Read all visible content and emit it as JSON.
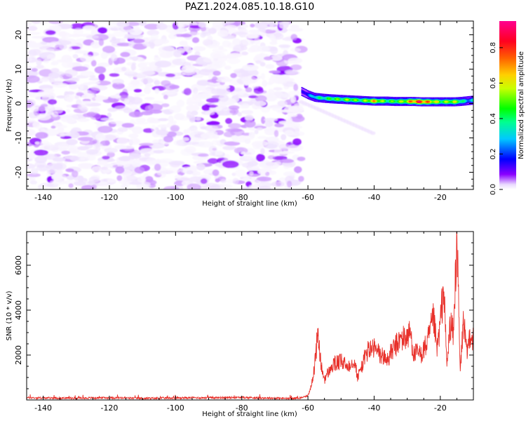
{
  "title": "PAZ1.2024.085.10.18.G10",
  "chart_data": [
    {
      "type": "heatmap",
      "xlabel": "Height of straight line (km)",
      "ylabel": "Frequency (Hz)",
      "xlim": [
        -145,
        -10
      ],
      "ylim": [
        -25,
        24
      ],
      "xticks": [
        -140,
        -120,
        -100,
        -80,
        -60,
        -40,
        -20
      ],
      "yticks": [
        -20,
        -10,
        0,
        10,
        20
      ],
      "colorbar": {
        "label": "Normalized spectral amplitude",
        "range": [
          0,
          0.95
        ],
        "ticks": [
          "0.0",
          "0.2",
          "0.4",
          "0.6",
          "0.8"
        ],
        "colormap": "gist_rainbow (white at 0)"
      },
      "description_regions": [
        {
          "x_range": [
            -145,
            -62
          ],
          "frequency_range": [
            -25,
            24
          ],
          "amplitude": [
            0.0,
            0.08
          ],
          "pattern": "noise speckle"
        },
        {
          "x_range": [
            -62,
            -10
          ],
          "frequency_center": 0.8,
          "frequency_halfwidth": 1.5,
          "amplitude": [
            0.15,
            0.95
          ],
          "pattern": "narrow tone"
        }
      ],
      "tone_profile": {
        "x": [
          -62,
          -60,
          -58,
          -55,
          -52,
          -50,
          -48,
          -46,
          -44,
          -42,
          -40,
          -38,
          -36,
          -34,
          -32,
          -30,
          -28,
          -26,
          -24,
          -22,
          -20,
          -18,
          -16,
          -14,
          -12,
          -10
        ],
        "frequency": [
          3.5,
          2.5,
          1.8,
          1.5,
          1.3,
          1.2,
          1.1,
          1.0,
          0.9,
          0.8,
          0.7,
          0.7,
          0.7,
          0.6,
          0.6,
          0.6,
          0.6,
          0.5,
          0.5,
          0.5,
          0.5,
          0.5,
          0.5,
          0.6,
          0.8,
          1.0
        ],
        "amplitude": [
          0.15,
          0.25,
          0.4,
          0.45,
          0.55,
          0.5,
          0.6,
          0.55,
          0.5,
          0.65,
          0.75,
          0.6,
          0.5,
          0.55,
          0.6,
          0.7,
          0.9,
          0.95,
          0.8,
          0.7,
          0.55,
          0.6,
          0.65,
          0.5,
          0.3,
          0.4
        ]
      }
    },
    {
      "type": "line",
      "xlabel": "Height of straight line (km)",
      "ylabel": "SNR (10 * v/v)",
      "xlim": [
        -145,
        -10
      ],
      "ylim": [
        0,
        7500
      ],
      "xticks": [
        -140,
        -120,
        -100,
        -80,
        -60,
        -40,
        -20
      ],
      "yticks": [
        2000,
        4000,
        6000
      ],
      "series": [
        {
          "color": "#e8302a",
          "x": [
            -145,
            -140,
            -130,
            -120,
            -110,
            -100,
            -90,
            -80,
            -70,
            -65,
            -62,
            -60,
            -59,
            -58,
            -57,
            -56,
            -55,
            -54,
            -52,
            -50,
            -48,
            -46,
            -45,
            -44,
            -42,
            -40,
            -38,
            -36,
            -34,
            -32,
            -30,
            -29,
            -28,
            -27,
            -26,
            -24,
            -22,
            -21,
            -20,
            -19,
            -18,
            -17,
            -16,
            -15,
            -14,
            -13,
            -12,
            -11,
            -10
          ],
          "values": [
            100,
            90,
            80,
            100,
            70,
            90,
            100,
            110,
            80,
            60,
            100,
            200,
            600,
            1500,
            2950,
            1500,
            900,
            1200,
            1600,
            1700,
            1500,
            1800,
            1000,
            1400,
            2200,
            2300,
            2000,
            1800,
            2300,
            2700,
            2800,
            3000,
            2000,
            2100,
            2000,
            2500,
            3600,
            2200,
            3400,
            5100,
            1500,
            3400,
            2900,
            7500,
            1200,
            3600,
            2000,
            3000,
            2700
          ]
        }
      ]
    }
  ]
}
